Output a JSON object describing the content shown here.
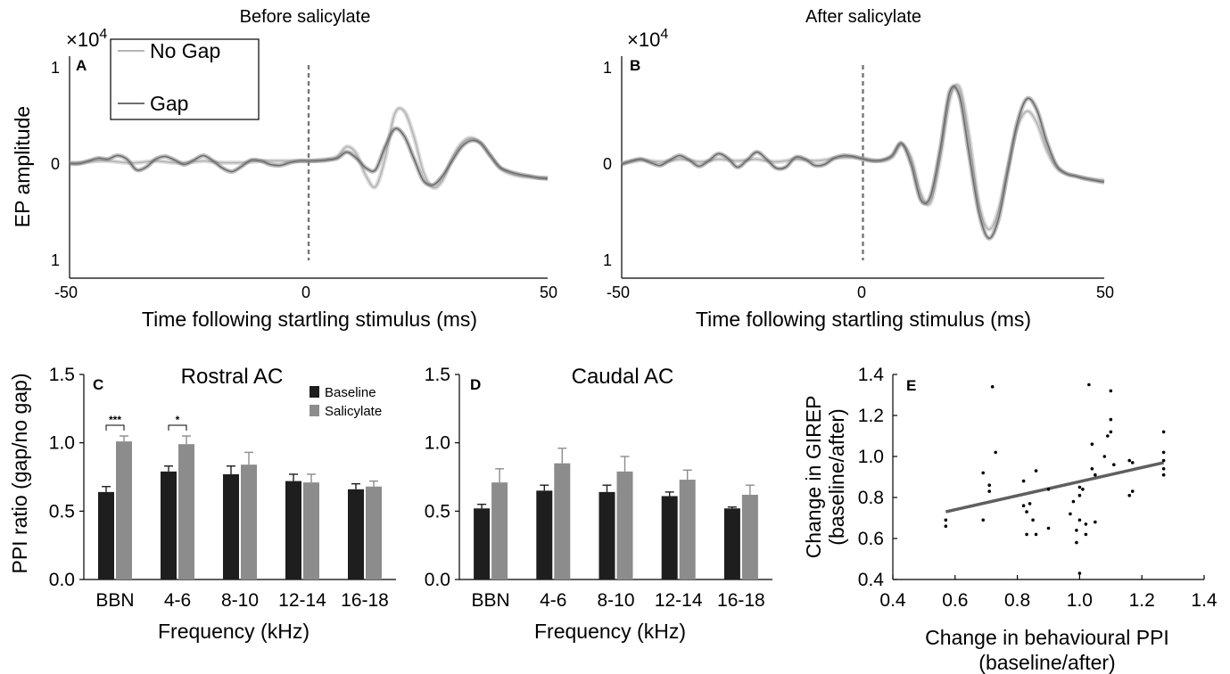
{
  "chart_data": [
    {
      "panel": "A",
      "type": "line",
      "title": "Before salicylate",
      "xlabel": "Time following startling stimulus (ms)",
      "ylabel": "EP amplitude",
      "y_multiplier": "×10",
      "y_multiplier_exp": "4",
      "xlim": [
        -50,
        50
      ],
      "ylim": [
        -1.1,
        1.1
      ],
      "x_ticks": [
        "-50",
        "0",
        "50"
      ],
      "y_ticks": [
        "1",
        "0",
        "1"
      ],
      "event_line_x": 0,
      "legend_position": "top-left",
      "x": [
        -50,
        -48,
        -46,
        -44,
        -42,
        -40,
        -38,
        -36,
        -34,
        -32,
        -30,
        -28,
        -26,
        -24,
        -22,
        -20,
        -18,
        -16,
        -14,
        -12,
        -10,
        -8,
        -6,
        -4,
        -2,
        0,
        2,
        4,
        6,
        8,
        10,
        12,
        14,
        16,
        18,
        20,
        22,
        24,
        26,
        28,
        30,
        32,
        34,
        36,
        38,
        40,
        42,
        44,
        46,
        48,
        50
      ],
      "series": [
        {
          "name": "No Gap",
          "color": "#b4b4b4",
          "values": [
            0.0,
            0.0,
            0.01,
            0.02,
            0.02,
            0.01,
            0.0,
            0.0,
            0.01,
            0.02,
            0.01,
            0.0,
            0.0,
            0.01,
            0.02,
            0.01,
            0.0,
            0.0,
            0.0,
            0.01,
            0.02,
            0.02,
            0.02,
            0.02,
            0.02,
            0.02,
            0.03,
            0.04,
            0.07,
            0.18,
            0.1,
            -0.15,
            -0.27,
            0.05,
            0.55,
            0.58,
            0.3,
            -0.1,
            -0.28,
            -0.2,
            0.05,
            0.22,
            0.28,
            0.22,
            0.08,
            -0.06,
            -0.12,
            -0.15,
            -0.16,
            -0.17,
            -0.17
          ]
        },
        {
          "name": "Gap",
          "color": "#6e6e6e",
          "values": [
            -0.01,
            -0.01,
            0.02,
            0.05,
            0.04,
            0.08,
            0.04,
            -0.08,
            -0.05,
            0.04,
            0.07,
            0.03,
            -0.02,
            0.03,
            0.08,
            0.02,
            -0.06,
            -0.1,
            -0.04,
            0.03,
            0.02,
            -0.02,
            -0.03,
            0.0,
            0.02,
            0.02,
            0.02,
            0.03,
            0.05,
            0.12,
            0.05,
            -0.06,
            -0.08,
            0.18,
            0.38,
            0.3,
            0.05,
            -0.2,
            -0.25,
            -0.15,
            0.02,
            0.18,
            0.25,
            0.22,
            0.08,
            -0.05,
            -0.1,
            -0.13,
            -0.15,
            -0.17,
            -0.18
          ]
        }
      ]
    },
    {
      "panel": "B",
      "type": "line",
      "title": "After salicylate",
      "xlabel": "Time following startling stimulus (ms)",
      "ylabel": "",
      "y_multiplier": "×10",
      "y_multiplier_exp": "4",
      "xlim": [
        -50,
        50
      ],
      "ylim": [
        -1.1,
        1.1
      ],
      "x_ticks": [
        "-50",
        "0",
        "50"
      ],
      "y_ticks": [
        "1",
        "0",
        "1"
      ],
      "event_line_x": 0,
      "x": [
        -50,
        -48,
        -46,
        -44,
        -42,
        -40,
        -38,
        -36,
        -34,
        -32,
        -30,
        -28,
        -26,
        -24,
        -22,
        -20,
        -18,
        -16,
        -14,
        -12,
        -10,
        -8,
        -6,
        -4,
        -2,
        0,
        2,
        4,
        6,
        8,
        10,
        12,
        14,
        16,
        18,
        20,
        22,
        24,
        26,
        28,
        30,
        32,
        34,
        36,
        38,
        40,
        42,
        44,
        46,
        48,
        50
      ],
      "series": [
        {
          "name": "No Gap",
          "color": "#b4b4b4",
          "values": [
            0.0,
            0.01,
            0.03,
            0.02,
            0.01,
            0.02,
            0.04,
            0.03,
            0.01,
            0.02,
            0.04,
            0.03,
            0.02,
            0.03,
            0.04,
            0.02,
            0.01,
            0.02,
            0.04,
            0.03,
            0.02,
            0.03,
            0.05,
            0.06,
            0.06,
            0.05,
            0.03,
            0.02,
            0.06,
            0.2,
            0.05,
            -0.35,
            -0.45,
            0.05,
            0.72,
            0.85,
            0.3,
            -0.45,
            -0.75,
            -0.55,
            -0.05,
            0.4,
            0.58,
            0.45,
            0.15,
            -0.05,
            -0.12,
            -0.15,
            -0.17,
            -0.19,
            -0.2
          ]
        },
        {
          "name": "Gap",
          "color": "#6e6e6e",
          "values": [
            -0.02,
            0.02,
            0.04,
            0.0,
            -0.03,
            0.03,
            0.08,
            0.03,
            -0.04,
            0.02,
            0.1,
            0.05,
            -0.05,
            0.03,
            0.12,
            0.04,
            -0.06,
            -0.05,
            0.06,
            0.04,
            -0.03,
            -0.02,
            0.05,
            0.08,
            0.07,
            0.04,
            0.02,
            0.03,
            0.08,
            0.22,
            -0.02,
            -0.42,
            -0.38,
            0.15,
            0.8,
            0.75,
            0.1,
            -0.55,
            -0.85,
            -0.65,
            -0.1,
            0.45,
            0.72,
            0.6,
            0.25,
            -0.02,
            -0.12,
            -0.15,
            -0.18,
            -0.2,
            -0.22
          ]
        }
      ]
    },
    {
      "panel": "C",
      "type": "bar",
      "title": "Rostral AC",
      "xlabel": "Frequency (kHz)",
      "ylabel": "PPI ratio (gap/no gap)",
      "categories": [
        "BBN",
        "4-6",
        "8-10",
        "12-14",
        "16-18"
      ],
      "ylim": [
        0,
        1.5
      ],
      "y_ticks": [
        "0.0",
        "0.5",
        "1.0",
        "1.5"
      ],
      "legend_position": "top-right",
      "series": [
        {
          "name": "Baseline",
          "color": "#1e1e1e",
          "values": [
            0.64,
            0.79,
            0.77,
            0.72,
            0.66
          ],
          "errors": [
            0.04,
            0.04,
            0.06,
            0.05,
            0.04
          ]
        },
        {
          "name": "Salicylate",
          "color": "#8c8c8c",
          "values": [
            1.01,
            0.99,
            0.84,
            0.71,
            0.68
          ],
          "errors": [
            0.04,
            0.06,
            0.09,
            0.06,
            0.04
          ]
        }
      ],
      "significance": [
        {
          "category": "BBN",
          "label": "***"
        },
        {
          "category": "4-6",
          "label": "*"
        }
      ]
    },
    {
      "panel": "D",
      "type": "bar",
      "title": "Caudal AC",
      "xlabel": "Frequency (kHz)",
      "ylabel": "",
      "categories": [
        "BBN",
        "4-6",
        "8-10",
        "12-14",
        "16-18"
      ],
      "ylim": [
        0,
        1.5
      ],
      "y_ticks": [
        "0.0",
        "0.5",
        "1.0",
        "1.5"
      ],
      "series": [
        {
          "name": "Baseline",
          "color": "#1e1e1e",
          "values": [
            0.52,
            0.65,
            0.64,
            0.61,
            0.52
          ],
          "errors": [
            0.03,
            0.04,
            0.05,
            0.03,
            0.01
          ]
        },
        {
          "name": "Salicylate",
          "color": "#8c8c8c",
          "values": [
            0.71,
            0.85,
            0.79,
            0.73,
            0.62
          ],
          "errors": [
            0.1,
            0.11,
            0.11,
            0.07,
            0.07
          ]
        }
      ]
    },
    {
      "panel": "E",
      "type": "scatter",
      "title": "",
      "xlabel_lines": [
        "Change in behavioural PPI",
        "(baseline/after)"
      ],
      "ylabel_lines": [
        "Change in GIREP",
        "(baseline/after)"
      ],
      "xlim": [
        0.4,
        1.4
      ],
      "ylim": [
        0.4,
        1.4
      ],
      "x_ticks": [
        "0.4",
        "0.6",
        "0.8",
        "1.0",
        "1.2",
        "1.4"
      ],
      "y_ticks": [
        "0.4",
        "0.6",
        "0.8",
        "1.0",
        "1.2",
        "1.4"
      ],
      "fit_line": {
        "x": [
          0.57,
          1.27
        ],
        "y": [
          0.73,
          0.97
        ],
        "color": "#5f5f5f"
      },
      "points": [
        [
          0.57,
          0.69
        ],
        [
          0.57,
          0.66
        ],
        [
          0.69,
          0.92
        ],
        [
          0.69,
          0.69
        ],
        [
          0.71,
          0.86
        ],
        [
          0.71,
          0.83
        ],
        [
          0.72,
          1.34
        ],
        [
          0.73,
          1.02
        ],
        [
          0.82,
          0.88
        ],
        [
          0.82,
          0.76
        ],
        [
          0.83,
          0.73
        ],
        [
          0.83,
          0.62
        ],
        [
          0.84,
          0.77
        ],
        [
          0.85,
          0.69
        ],
        [
          0.86,
          0.62
        ],
        [
          0.86,
          0.93
        ],
        [
          0.9,
          0.84
        ],
        [
          0.9,
          0.65
        ],
        [
          0.97,
          0.72
        ],
        [
          0.98,
          0.78
        ],
        [
          0.99,
          0.64
        ],
        [
          0.99,
          0.58
        ],
        [
          1.0,
          0.85
        ],
        [
          1.0,
          0.81
        ],
        [
          1.0,
          0.69
        ],
        [
          1.0,
          0.43
        ],
        [
          1.01,
          0.84
        ],
        [
          1.02,
          0.67
        ],
        [
          1.02,
          0.62
        ],
        [
          1.03,
          1.35
        ],
        [
          1.04,
          1.06
        ],
        [
          1.04,
          0.94
        ],
        [
          1.05,
          0.91
        ],
        [
          1.05,
          0.68
        ],
        [
          1.08,
          1.0
        ],
        [
          1.09,
          1.1
        ],
        [
          1.1,
          1.32
        ],
        [
          1.1,
          1.18
        ],
        [
          1.1,
          1.12
        ],
        [
          1.11,
          0.96
        ],
        [
          1.16,
          0.98
        ],
        [
          1.16,
          0.81
        ],
        [
          1.17,
          0.97
        ],
        [
          1.17,
          0.83
        ],
        [
          1.27,
          1.12
        ],
        [
          1.27,
          1.02
        ],
        [
          1.27,
          0.98
        ],
        [
          1.27,
          0.94
        ],
        [
          1.27,
          0.91
        ]
      ]
    }
  ]
}
